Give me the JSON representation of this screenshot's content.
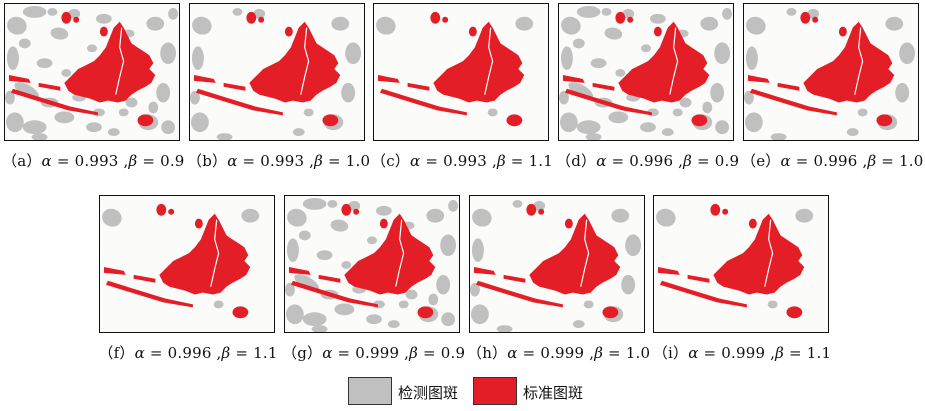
{
  "figure": {
    "panels": [
      {
        "id": "a",
        "tag": "（a）",
        "alpha": "0.993",
        "beta": "0.9",
        "detected_density": "high"
      },
      {
        "id": "b",
        "tag": "（b）",
        "alpha": "0.993",
        "beta": "1.0",
        "detected_density": "low"
      },
      {
        "id": "c",
        "tag": "（c）",
        "alpha": "0.993",
        "beta": "1.1",
        "detected_density": "minimal"
      },
      {
        "id": "d",
        "tag": "（d）",
        "alpha": "0.996",
        "beta": "0.9",
        "detected_density": "high"
      },
      {
        "id": "e",
        "tag": "（e）",
        "alpha": "0.996",
        "beta": "1.0",
        "detected_density": "low"
      },
      {
        "id": "f",
        "tag": "（f）",
        "alpha": "0.996",
        "beta": "1.1",
        "detected_density": "minimal"
      },
      {
        "id": "g",
        "tag": "（g）",
        "alpha": "0.999",
        "beta": "0.9",
        "detected_density": "high"
      },
      {
        "id": "h",
        "tag": "（h）",
        "alpha": "0.999",
        "beta": "1.0",
        "detected_density": "low"
      },
      {
        "id": "i",
        "tag": "（i）",
        "alpha": "0.999",
        "beta": "1.1",
        "detected_density": "minimal"
      }
    ],
    "symbols": {
      "alpha": "α",
      "beta": "β",
      "eq": " = ",
      "sep": " ,"
    },
    "legend": [
      {
        "label": "检测图斑",
        "color": "#c0c0c0"
      },
      {
        "label": "标准图斑",
        "color": "#e31e26"
      }
    ],
    "colors": {
      "map_bg": "#fbfbf9",
      "detected": "#c0c0c0",
      "standard": "#e31e26"
    }
  }
}
